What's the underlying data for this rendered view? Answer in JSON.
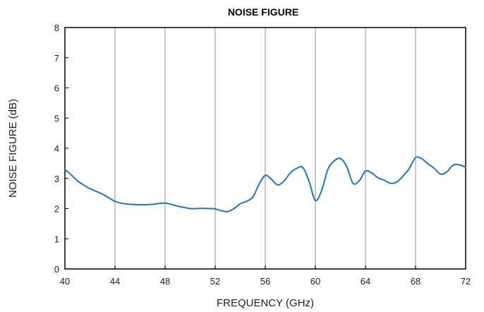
{
  "chart_data": {
    "type": "line",
    "title": "NOISE FIGURE",
    "xlabel": "FREQUENCY (GHz)",
    "ylabel": "NOISE FIGURE (dB)",
    "xlim": [
      40,
      72
    ],
    "ylim": [
      0,
      8
    ],
    "x_ticks": [
      40,
      44,
      48,
      52,
      56,
      60,
      64,
      68,
      72
    ],
    "y_ticks": [
      0,
      1,
      2,
      3,
      4,
      5,
      6,
      7,
      8
    ],
    "grid": {
      "vertical": true,
      "horizontal": false
    },
    "series_color": "#1f77b4",
    "series": [
      {
        "points": [
          [
            40.0,
            3.3
          ],
          [
            40.5,
            3.12
          ],
          [
            41.0,
            2.92
          ],
          [
            41.5,
            2.78
          ],
          [
            42.0,
            2.66
          ],
          [
            42.5,
            2.57
          ],
          [
            43.0,
            2.48
          ],
          [
            43.5,
            2.36
          ],
          [
            44.0,
            2.24
          ],
          [
            44.5,
            2.18
          ],
          [
            45.0,
            2.15
          ],
          [
            46.0,
            2.13
          ],
          [
            47.0,
            2.14
          ],
          [
            47.5,
            2.17
          ],
          [
            48.0,
            2.18
          ],
          [
            48.5,
            2.14
          ],
          [
            49.0,
            2.08
          ],
          [
            49.5,
            2.04
          ],
          [
            50.0,
            2.0
          ],
          [
            50.5,
            2.0
          ],
          [
            51.0,
            2.01
          ],
          [
            51.5,
            2.0
          ],
          [
            52.0,
            1.99
          ],
          [
            52.5,
            1.93
          ],
          [
            53.0,
            1.9
          ],
          [
            53.5,
            2.0
          ],
          [
            54.0,
            2.16
          ],
          [
            54.5,
            2.24
          ],
          [
            55.0,
            2.38
          ],
          [
            55.5,
            2.8
          ],
          [
            56.0,
            3.1
          ],
          [
            56.5,
            2.97
          ],
          [
            57.0,
            2.78
          ],
          [
            57.5,
            2.92
          ],
          [
            58.0,
            3.18
          ],
          [
            58.5,
            3.33
          ],
          [
            59.0,
            3.36
          ],
          [
            59.5,
            2.9
          ],
          [
            60.0,
            2.27
          ],
          [
            60.5,
            2.6
          ],
          [
            61.0,
            3.3
          ],
          [
            61.5,
            3.58
          ],
          [
            62.0,
            3.66
          ],
          [
            62.5,
            3.4
          ],
          [
            63.0,
            2.84
          ],
          [
            63.5,
            2.92
          ],
          [
            64.0,
            3.24
          ],
          [
            64.5,
            3.18
          ],
          [
            65.0,
            3.02
          ],
          [
            65.5,
            2.94
          ],
          [
            66.0,
            2.84
          ],
          [
            66.5,
            2.88
          ],
          [
            67.0,
            3.08
          ],
          [
            67.5,
            3.33
          ],
          [
            68.0,
            3.69
          ],
          [
            68.5,
            3.65
          ],
          [
            69.0,
            3.48
          ],
          [
            69.5,
            3.33
          ],
          [
            70.0,
            3.14
          ],
          [
            70.5,
            3.22
          ],
          [
            71.0,
            3.44
          ],
          [
            71.5,
            3.45
          ],
          [
            72.0,
            3.37
          ]
        ]
      }
    ]
  }
}
